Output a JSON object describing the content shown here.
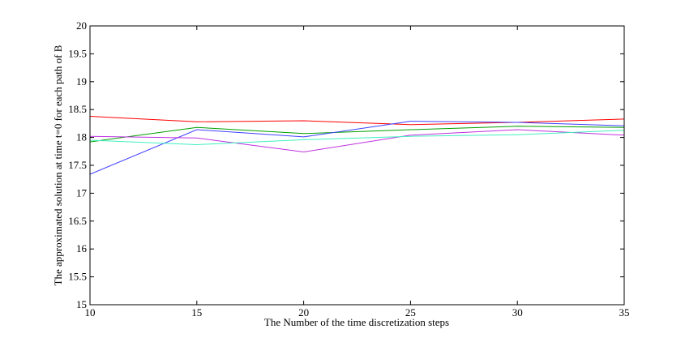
{
  "chart_data": {
    "type": "line",
    "title": "",
    "xlabel": "The Number of the time discretization steps",
    "ylabel": "The approximated solution at time t=0 for each path of B",
    "xlim": [
      10,
      35
    ],
    "ylim": [
      15,
      20
    ],
    "xticks": [
      10,
      15,
      20,
      25,
      30,
      35
    ],
    "yticks": [
      15,
      15.5,
      16,
      16.5,
      17,
      17.5,
      18,
      18.5,
      19,
      19.5,
      20
    ],
    "grid": false,
    "legend": "none",
    "x": [
      10,
      15,
      20,
      25,
      30,
      35
    ],
    "series": [
      {
        "color": "#ff0000",
        "values": [
          18.38,
          18.28,
          18.3,
          18.23,
          18.27,
          18.33
        ]
      },
      {
        "color": "#00a000",
        "values": [
          17.92,
          18.18,
          18.07,
          18.14,
          18.2,
          18.18
        ]
      },
      {
        "color": "#4040ff",
        "values": [
          17.34,
          18.14,
          18.01,
          18.29,
          18.27,
          18.21
        ]
      },
      {
        "color": "#c030e0",
        "values": [
          18.02,
          17.99,
          17.74,
          18.04,
          18.14,
          18.04
        ]
      },
      {
        "color": "#40f0c0",
        "values": [
          17.95,
          17.87,
          17.96,
          18.02,
          18.05,
          18.13
        ]
      }
    ]
  }
}
